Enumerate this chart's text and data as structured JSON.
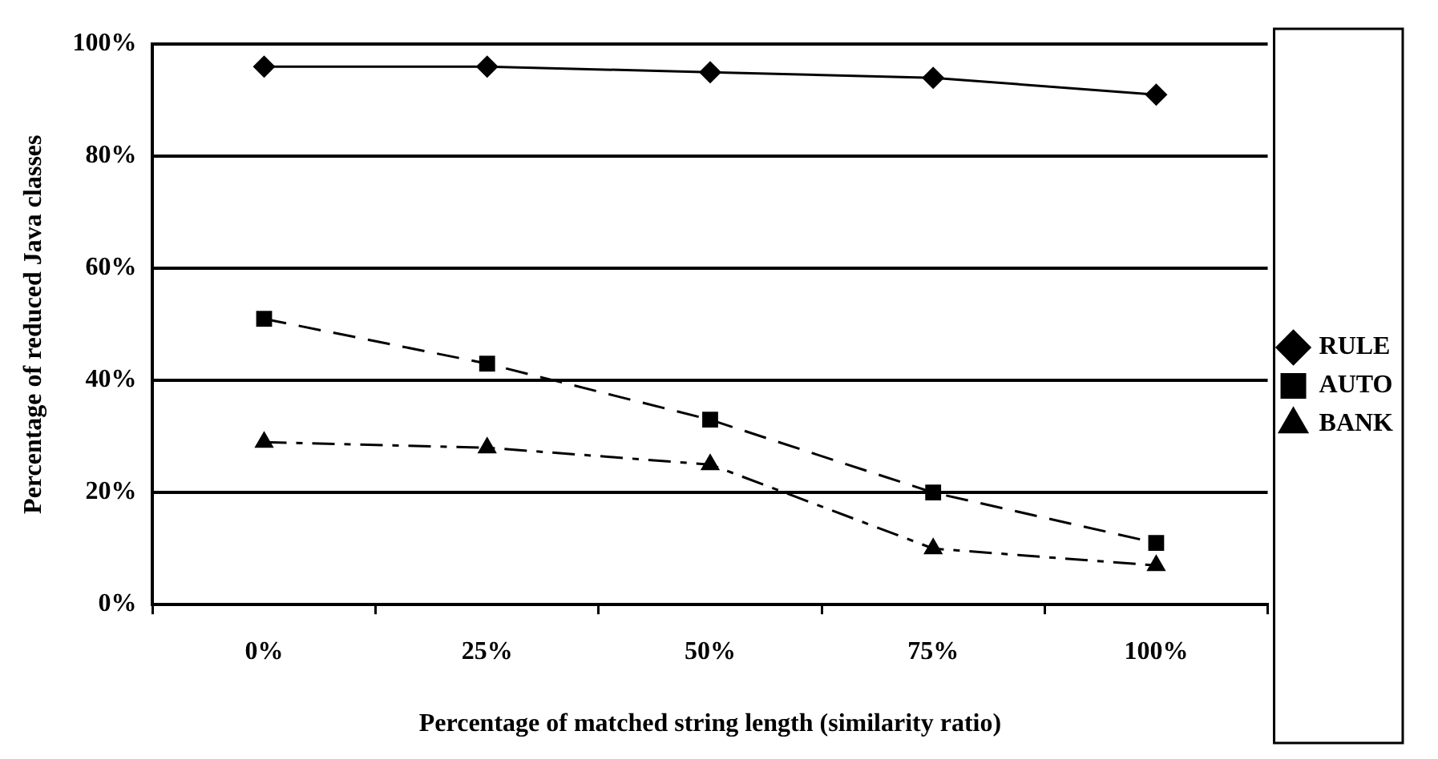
{
  "chart_data": {
    "type": "line",
    "xlabel": "Percentage of matched string length (similarity ratio)",
    "ylabel": "Percentage of reduced Java classes",
    "categories": [
      "0%",
      "25%",
      "50%",
      "75%",
      "100%"
    ],
    "series": [
      {
        "name": "RULE",
        "color": "#000000",
        "marker": "diamond",
        "line_style": "solid",
        "values": [
          96,
          96,
          95,
          94,
          91
        ]
      },
      {
        "name": "AUTO",
        "color": "#000000",
        "marker": "square",
        "line_style": "dashed",
        "values": [
          51,
          43,
          33,
          20,
          11
        ]
      },
      {
        "name": "BANK",
        "color": "#000000",
        "marker": "triangle",
        "line_style": "dotted",
        "values": [
          29,
          28,
          25,
          10,
          7
        ]
      }
    ],
    "ylim": [
      0,
      100
    ],
    "yticks": [
      {
        "value": 0,
        "label": "0%"
      },
      {
        "value": 20,
        "label": "20%"
      },
      {
        "value": 40,
        "label": "40%"
      },
      {
        "value": 60,
        "label": "60%"
      },
      {
        "value": 80,
        "label": "80%"
      },
      {
        "value": 100,
        "label": "100%"
      }
    ],
    "grid": "y",
    "legend": "right"
  }
}
